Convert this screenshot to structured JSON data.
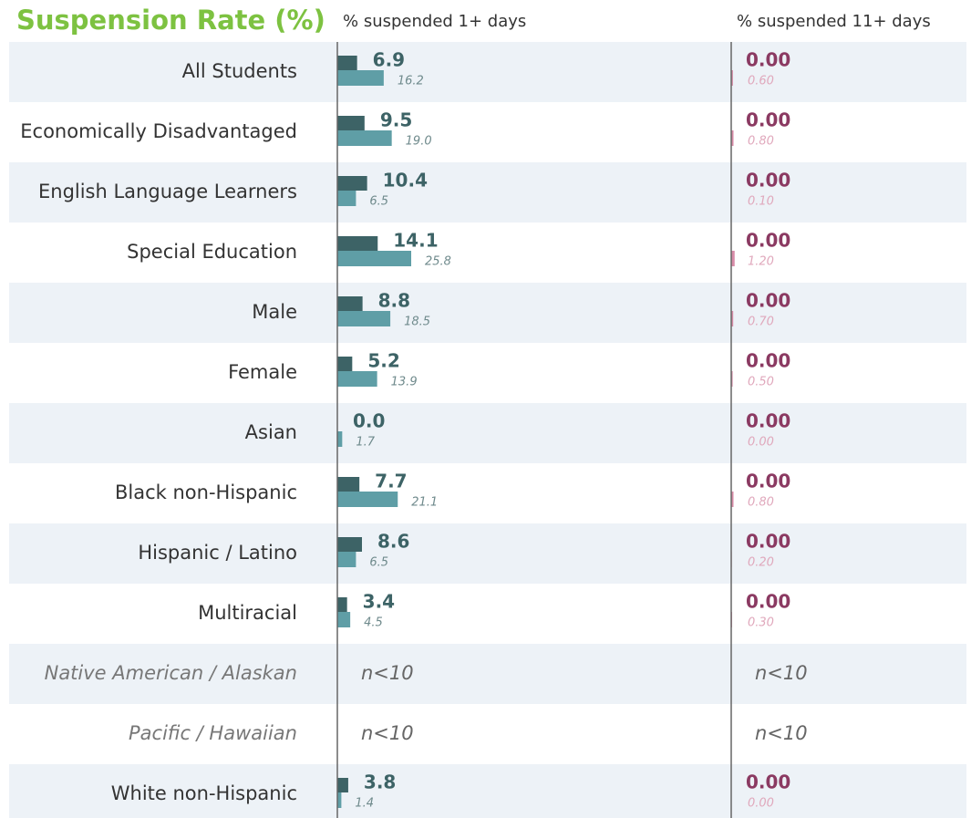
{
  "chart_data": {
    "type": "bar",
    "orientation": "horizontal",
    "title": "Suspension Rate (%)",
    "categories": [
      "All Students",
      "Economically Disadvantaged",
      "English Language Learners",
      "Special Education",
      "Male",
      "Female",
      "Asian",
      "Black non-Hispanic",
      "Hispanic / Latino",
      "Multiracial",
      "Native American / Alaskan",
      "Pacific / Hawaiian",
      "White non-Hispanic"
    ],
    "panels": [
      {
        "label": "% suspended 1+ days",
        "xlim": [
          0,
          100
        ],
        "series": [
          {
            "color": "#3d6366",
            "values": [
              6.9,
              9.5,
              10.4,
              14.1,
              8.8,
              5.2,
              0.0,
              7.7,
              8.6,
              3.4,
              null,
              null,
              3.8
            ],
            "value_labels": [
              "6.9",
              "9.5",
              "10.4",
              "14.1",
              "8.8",
              "5.2",
              "0.0",
              "7.7",
              "8.6",
              "3.4",
              "n<10",
              "n<10",
              "3.8"
            ]
          },
          {
            "color": "#5f9ea6",
            "values": [
              16.2,
              19.0,
              6.5,
              25.8,
              18.5,
              13.9,
              1.7,
              21.1,
              6.5,
              4.5,
              null,
              null,
              1.4
            ],
            "value_labels": [
              "16.2",
              "19.0",
              "6.5",
              "25.8",
              "18.5",
              "13.9",
              "1.7",
              "21.1",
              "6.5",
              "4.5",
              null,
              null,
              "1.4"
            ]
          }
        ]
      },
      {
        "label": "% suspended 11+ days",
        "xlim": [
          0,
          100
        ],
        "series": [
          {
            "color": "#8b3a62",
            "values": [
              0,
              0,
              0,
              0,
              0,
              0,
              0,
              0,
              0,
              0,
              null,
              null,
              0
            ],
            "value_labels": [
              "0.00",
              "0.00",
              "0.00",
              "0.00",
              "0.00",
              "0.00",
              "0.00",
              "0.00",
              "0.00",
              "0.00",
              "n<10",
              "n<10",
              "0.00"
            ]
          },
          {
            "color": "#d88ca8",
            "values": [
              0.6,
              0.8,
              0.1,
              1.2,
              0.7,
              0.5,
              0,
              0.8,
              0.2,
              0.3,
              null,
              null,
              0
            ],
            "value_labels": [
              "0.60",
              "0.80",
              "0.10",
              "1.20",
              "0.70",
              "0.50",
              "0.00",
              "0.80",
              "0.20",
              "0.30",
              null,
              null,
              "0.00"
            ]
          }
        ]
      }
    ]
  }
}
